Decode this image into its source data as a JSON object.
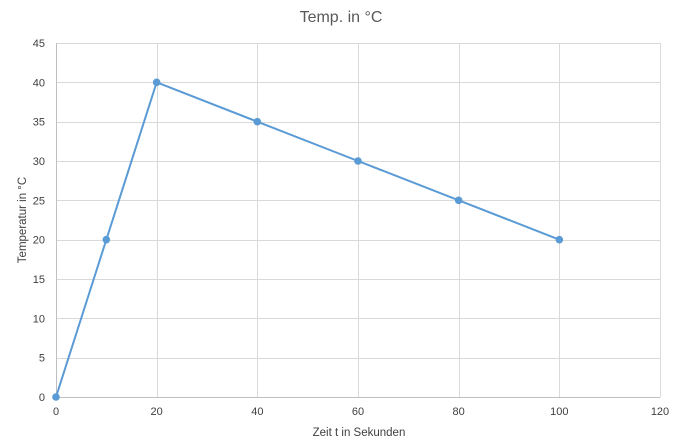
{
  "chart_data": {
    "type": "scatter",
    "title": "Temp. in °C",
    "xlabel": "Zeit t in Sekunden",
    "ylabel": "Temperatur in °C",
    "xlim": [
      0,
      120
    ],
    "ylim": [
      0,
      45
    ],
    "xticks": [
      0,
      20,
      40,
      60,
      80,
      100,
      120
    ],
    "yticks": [
      0,
      5,
      10,
      15,
      20,
      25,
      30,
      35,
      40,
      45
    ],
    "grid": true,
    "legend": "none",
    "markers": true,
    "connected": true,
    "series": [
      {
        "color": "#5b9bd5",
        "x": [
          0,
          10,
          20,
          40,
          60,
          80,
          100
        ],
        "y": [
          0,
          20,
          40,
          35,
          30,
          25,
          20
        ]
      }
    ]
  }
}
